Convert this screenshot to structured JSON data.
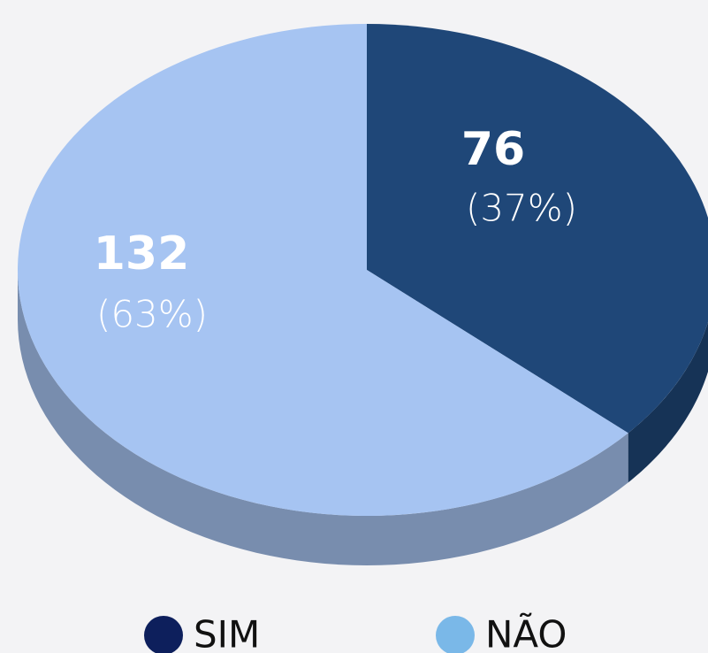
{
  "chart_data": {
    "type": "pie3d",
    "categories": [
      "SIM",
      "NÃO"
    ],
    "values": [
      76,
      132
    ],
    "percent_labels": [
      "(37%)",
      "(63%)"
    ],
    "colors": [
      "#1f4778",
      "#a6c4f2"
    ],
    "legend_colors": [
      "#0d1f5c",
      "#7ab8e8"
    ]
  }
}
